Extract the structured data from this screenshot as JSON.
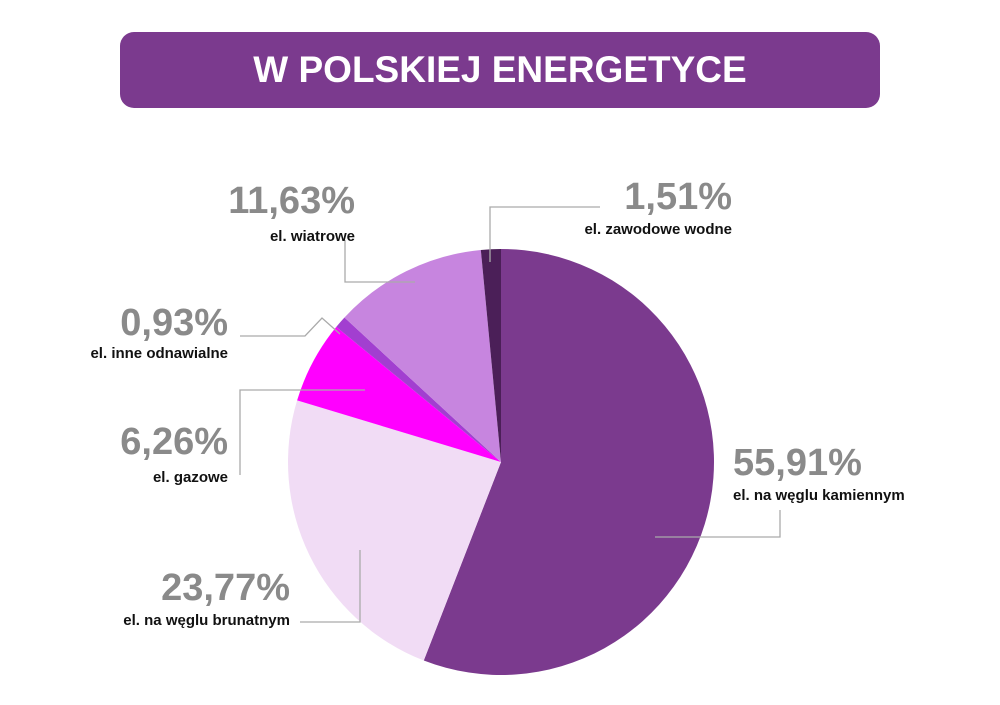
{
  "chart_data": {
    "type": "pie",
    "title": "W POLSKIEJ ENERGETYCE",
    "categories": [
      "el. na węglu kamiennym",
      "el. na węglu brunatnym",
      "el. gazowe",
      "el. inne odnawialne",
      "el. wiatrowe",
      "el. zawodowe wodne"
    ],
    "values": [
      55.91,
      23.77,
      6.26,
      0.93,
      11.63,
      1.51
    ],
    "value_labels": [
      "55,91%",
      "23,77%",
      "6,26%",
      "0,93%",
      "11,63%",
      "1,51%"
    ],
    "colors": [
      "#7b3a8e",
      "#f1dcf5",
      "#ff00ff",
      "#a23fd0",
      "#c785df",
      "#4b1f58"
    ]
  }
}
